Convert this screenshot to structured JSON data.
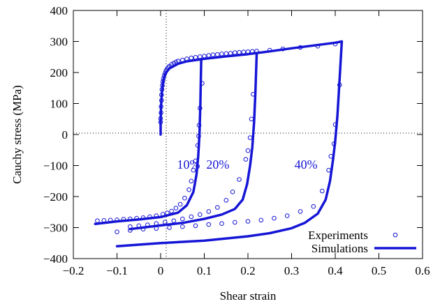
{
  "chart_data": {
    "type": "scatter",
    "xlabel": "Shear strain",
    "ylabel": "Cauchy stress (MPa)",
    "xlim": [
      -0.2,
      0.6
    ],
    "ylim": [
      -400,
      400
    ],
    "xticks": [
      -0.2,
      -0.1,
      0,
      0.1,
      0.2,
      0.3,
      0.4,
      0.5,
      0.6
    ],
    "yticks": [
      -400,
      -300,
      -200,
      -100,
      0,
      100,
      200,
      300,
      400
    ],
    "xtick_labels": [
      "−0.2",
      "−0.1",
      "0",
      "0.1",
      "0.2",
      "0.3",
      "0.4",
      "0.5",
      "0.6"
    ],
    "ytick_labels": [
      "−400",
      "−300",
      "−200",
      "−100",
      "0",
      "100",
      "200",
      "300",
      "400"
    ],
    "grid": false,
    "zero_lines": true,
    "legend_position": "bottom-right",
    "color": "#1515d6",
    "annotations": [
      {
        "text": "10%",
        "x": 0.064,
        "y": -110
      },
      {
        "text": "20%",
        "x": 0.131,
        "y": -110
      },
      {
        "text": "40%",
        "x": 0.333,
        "y": -110
      }
    ],
    "series": [
      {
        "name": "Experiments",
        "kind": "markers",
        "points": [
          [
            0.0,
            40
          ],
          [
            0.0,
            52
          ],
          [
            0.001,
            70
          ],
          [
            0.001,
            90
          ],
          [
            0.002,
            110
          ],
          [
            0.002,
            128
          ],
          [
            0.003,
            145
          ],
          [
            0.004,
            158
          ],
          [
            0.005,
            170
          ],
          [
            0.006,
            180
          ],
          [
            0.008,
            190
          ],
          [
            0.01,
            198
          ],
          [
            0.012,
            205
          ],
          [
            0.014,
            210
          ],
          [
            0.017,
            216
          ],
          [
            0.02,
            220
          ],
          [
            0.025,
            226
          ],
          [
            0.03,
            230
          ],
          [
            0.035,
            234
          ],
          [
            0.04,
            237
          ],
          [
            0.05,
            240
          ],
          [
            0.06,
            244
          ],
          [
            0.07,
            247
          ],
          [
            0.08,
            249
          ],
          [
            0.09,
            251
          ],
          [
            0.1,
            253
          ],
          [
            0.11,
            255
          ],
          [
            0.12,
            257
          ],
          [
            0.13,
            258
          ],
          [
            0.14,
            260
          ],
          [
            0.15,
            261
          ],
          [
            0.16,
            262
          ],
          [
            0.17,
            264
          ],
          [
            0.18,
            265
          ],
          [
            0.19,
            266
          ],
          [
            0.2,
            267
          ],
          [
            0.21,
            268
          ],
          [
            0.22,
            269
          ],
          [
            0.25,
            272
          ],
          [
            0.28,
            276
          ],
          [
            0.32,
            281
          ],
          [
            0.36,
            285
          ],
          [
            0.4,
            292
          ],
          [
            0.41,
            160
          ],
          [
            0.4,
            32
          ],
          [
            0.397,
            -30
          ],
          [
            0.39,
            -70
          ],
          [
            0.385,
            -115
          ],
          [
            0.37,
            -182
          ],
          [
            0.35,
            -232
          ],
          [
            0.32,
            -248
          ],
          [
            0.29,
            -262
          ],
          [
            0.26,
            -270
          ],
          [
            0.23,
            -276
          ],
          [
            0.2,
            -280
          ],
          [
            0.17,
            -283
          ],
          [
            0.14,
            -287
          ],
          [
            0.11,
            -290
          ],
          [
            0.08,
            -294
          ],
          [
            0.05,
            -297
          ],
          [
            0.02,
            -300
          ],
          [
            -0.01,
            -303
          ],
          [
            -0.04,
            -305
          ],
          [
            -0.07,
            -309
          ],
          [
            -0.1,
            -314
          ],
          [
            0.212,
            130
          ],
          [
            0.208,
            50
          ],
          [
            0.205,
            -10
          ],
          [
            0.2,
            -52
          ],
          [
            0.195,
            -80
          ],
          [
            0.18,
            -145
          ],
          [
            0.165,
            -185
          ],
          [
            0.15,
            -212
          ],
          [
            0.13,
            -235
          ],
          [
            0.11,
            -248
          ],
          [
            0.09,
            -258
          ],
          [
            0.07,
            -265
          ],
          [
            0.05,
            -272
          ],
          [
            0.03,
            -278
          ],
          [
            0.01,
            -282
          ],
          [
            -0.01,
            -287
          ],
          [
            -0.03,
            -291
          ],
          [
            -0.05,
            -294
          ],
          [
            -0.07,
            -297
          ],
          [
            0.095,
            165
          ],
          [
            0.09,
            85
          ],
          [
            0.088,
            30
          ],
          [
            0.087,
            -5
          ],
          [
            0.085,
            -35
          ],
          [
            0.08,
            -85
          ],
          [
            0.075,
            -115
          ],
          [
            0.07,
            -150
          ],
          [
            0.065,
            -178
          ],
          [
            0.055,
            -205
          ],
          [
            0.045,
            -225
          ],
          [
            0.035,
            -237
          ],
          [
            0.025,
            -247
          ],
          [
            0.015,
            -253
          ],
          [
            0.005,
            -257
          ],
          [
            -0.01,
            -262
          ],
          [
            -0.025,
            -265
          ],
          [
            -0.04,
            -268
          ],
          [
            -0.055,
            -270
          ],
          [
            -0.07,
            -272
          ],
          [
            -0.085,
            -273
          ],
          [
            -0.1,
            -275
          ],
          [
            -0.115,
            -276
          ],
          [
            -0.13,
            -277
          ],
          [
            -0.145,
            -278
          ]
        ]
      },
      {
        "name": "Simulations",
        "kind": "line",
        "paths": [
          [
            [
              0.0,
              0
            ],
            [
              0.0,
              40
            ],
            [
              0.001,
              90
            ],
            [
              0.003,
              140
            ],
            [
              0.006,
              175
            ],
            [
              0.01,
              195
            ],
            [
              0.02,
              213
            ],
            [
              0.04,
              228
            ],
            [
              0.06,
              236
            ],
            [
              0.1,
              244
            ],
            [
              0.15,
              252
            ],
            [
              0.2,
              259
            ],
            [
              0.25,
              268
            ],
            [
              0.3,
              278
            ],
            [
              0.35,
              287
            ],
            [
              0.4,
              296
            ],
            [
              0.415,
              300
            ]
          ],
          [
            [
              0.415,
              300
            ],
            [
              0.41,
              180
            ],
            [
              0.405,
              60
            ],
            [
              0.4,
              -20
            ],
            [
              0.395,
              -80
            ],
            [
              0.388,
              -150
            ],
            [
              0.378,
              -210
            ],
            [
              0.36,
              -255
            ],
            [
              0.33,
              -285
            ],
            [
              0.3,
              -302
            ],
            [
              0.25,
              -318
            ],
            [
              0.2,
              -328
            ],
            [
              0.1,
              -342
            ],
            [
              0.0,
              -350
            ],
            [
              -0.1,
              -360
            ]
          ],
          [
            [
              0.093,
              240
            ],
            [
              0.091,
              100
            ],
            [
              0.089,
              0
            ],
            [
              0.086,
              -70
            ],
            [
              0.082,
              -130
            ],
            [
              0.075,
              -185
            ],
            [
              0.06,
              -228
            ],
            [
              0.04,
              -252
            ],
            [
              0.0,
              -266
            ],
            [
              -0.05,
              -274
            ],
            [
              -0.1,
              -280
            ],
            [
              -0.15,
              -288
            ]
          ],
          [
            [
              0.22,
              258
            ],
            [
              0.217,
              130
            ],
            [
              0.214,
              40
            ],
            [
              0.21,
              -40
            ],
            [
              0.205,
              -100
            ],
            [
              0.198,
              -160
            ],
            [
              0.188,
              -210
            ],
            [
              0.17,
              -240
            ],
            [
              0.14,
              -258
            ],
            [
              0.1,
              -272
            ],
            [
              0.05,
              -285
            ],
            [
              0.0,
              -293
            ],
            [
              -0.07,
              -305
            ]
          ]
        ]
      }
    ]
  }
}
